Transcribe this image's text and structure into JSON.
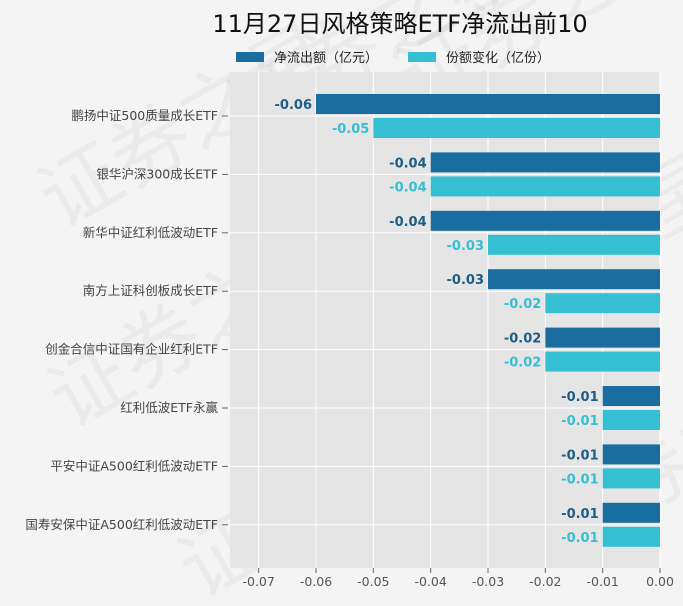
{
  "chart_data": {
    "type": "bar",
    "orientation": "horizontal",
    "title": "11月27日风格策略ETF净流出前10",
    "categories": [
      "鹏扬中证500质量成长ETF",
      "银华沪深300成长ETF",
      "新华中证红利低波动ETF",
      "南方上证科创板成长ETF",
      "创金合信中证国有企业红利ETF",
      "红利低波ETF永赢",
      "平安中证A500红利低波动ETF",
      "国寿安保中证A500红利低波动ETF"
    ],
    "series": [
      {
        "name": "净流出额（亿元）",
        "color": "#1a6e9f",
        "values": [
          -0.06,
          -0.04,
          -0.04,
          -0.03,
          -0.02,
          -0.01,
          -0.01,
          -0.01
        ],
        "labels": [
          "-0.06",
          "-0.04",
          "-0.04",
          "-0.03",
          "-0.02",
          "-0.01",
          "-0.01",
          "-0.01"
        ]
      },
      {
        "name": "份额变化（亿份）",
        "color": "#35bfd3",
        "values": [
          -0.05,
          -0.04,
          -0.03,
          -0.02,
          -0.02,
          -0.01,
          -0.01,
          -0.01
        ],
        "labels": [
          "-0.05",
          "-0.04",
          "-0.03",
          "-0.02",
          "-0.02",
          "-0.01",
          "-0.01",
          "-0.01"
        ]
      }
    ],
    "xticks": [
      "-0.07",
      "-0.06",
      "-0.05",
      "-0.04",
      "-0.03",
      "-0.02",
      "-0.01",
      "0.00"
    ],
    "xtick_values": [
      -0.07,
      -0.06,
      -0.05,
      -0.04,
      -0.03,
      -0.02,
      -0.01,
      0
    ],
    "xlim": [
      -0.075,
      0
    ],
    "xlabel": "",
    "ylabel": "",
    "grid": true,
    "legend_position": "top-center"
  },
  "watermark": "证券之星"
}
